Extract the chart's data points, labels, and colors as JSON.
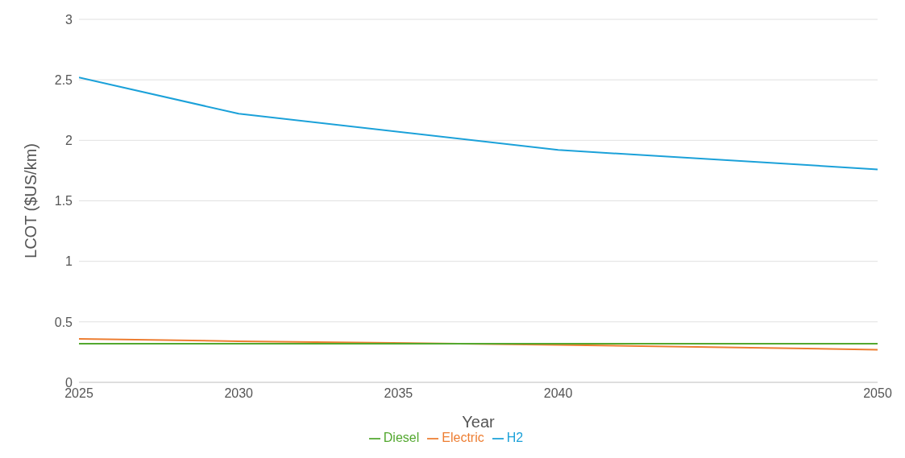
{
  "chart_data": {
    "type": "line",
    "xlabel": "Year",
    "ylabel": "LCOT ($US/km)",
    "x": [
      2025,
      2030,
      2040,
      2050
    ],
    "series": [
      {
        "name": "Electric",
        "color": "#ed7d31",
        "values": [
          0.36,
          0.34,
          0.31,
          0.27
        ]
      },
      {
        "name": "H2",
        "color": "#1ba1d9",
        "values": [
          2.52,
          2.22,
          1.92,
          1.76
        ]
      },
      {
        "name": "Diesel",
        "color": "#53a82f",
        "values": [
          0.32,
          0.32,
          0.32,
          0.32
        ]
      }
    ],
    "xlim": [
      2025,
      2050
    ],
    "xticks": [
      2025,
      2030,
      2035,
      2040,
      2050
    ],
    "ylim": [
      0,
      3
    ],
    "yticks": [
      0,
      0.5,
      1,
      1.5,
      2,
      2.5,
      3
    ],
    "grid": "y",
    "legend": "bottom",
    "marker": "none",
    "line_style": "solid"
  }
}
